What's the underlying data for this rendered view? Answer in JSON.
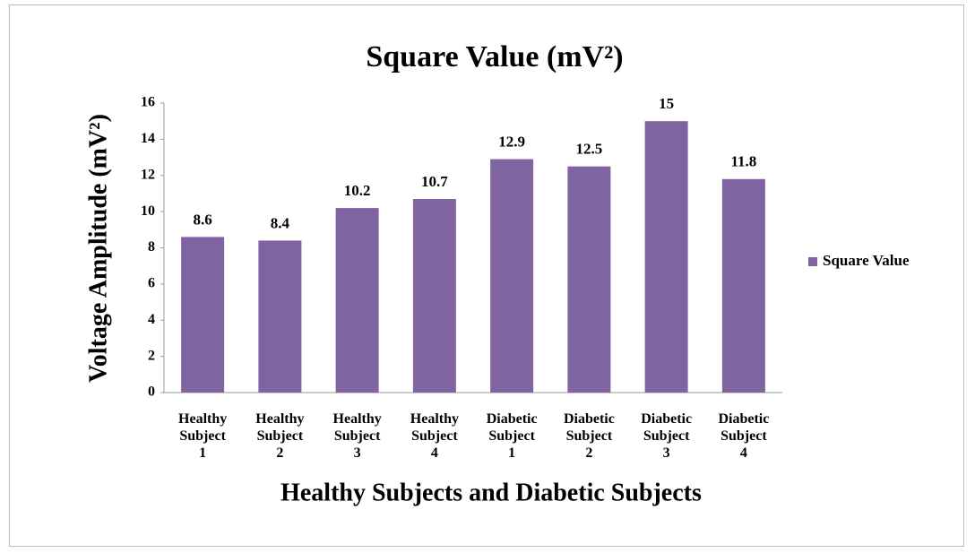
{
  "chart_data": {
    "type": "bar",
    "title": "Square Value (mV²)",
    "y_label": "Voltage Amplitude (mV²)",
    "x_label": "Healthy Subjects and Diabetic Subjects",
    "categories": [
      "Healthy\nSubject\n1",
      "Healthy\nSubject\n2",
      "Healthy\nSubject\n3",
      "Healthy\nSubject\n4",
      "Diabetic\nSubject\n1",
      "Diabetic\nSubject\n2",
      "Diabetic\nSubject\n3",
      "Diabetic\nSubject\n4"
    ],
    "series": [
      {
        "name": "Square Value",
        "color": "#8064a2",
        "values": [
          8.6,
          8.4,
          10.2,
          10.7,
          12.9,
          12.5,
          15,
          11.8
        ]
      }
    ],
    "ylim": [
      0,
      16
    ],
    "yticks": [
      0,
      2,
      4,
      6,
      8,
      10,
      12,
      14,
      16
    ],
    "grid": false,
    "legend": "right"
  }
}
